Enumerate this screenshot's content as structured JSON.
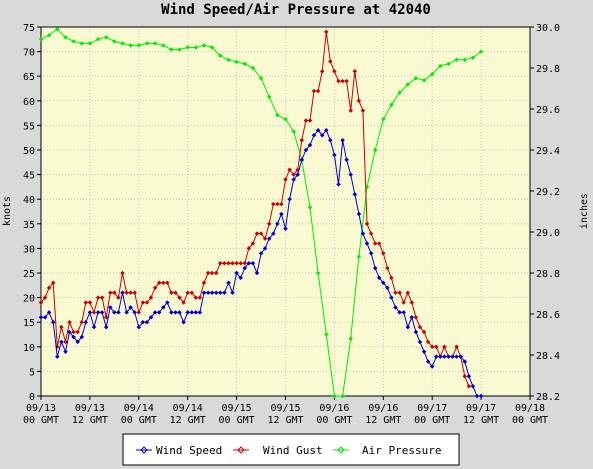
{
  "chart_data": {
    "type": "line",
    "title": "Wind Speed/Air Pressure at 42040",
    "y_left_label": "knots",
    "y_right_label": "inches",
    "y_left_range": [
      0,
      75
    ],
    "y_right_range": [
      28.2,
      30.0
    ],
    "y_left_ticks": [
      "0",
      "5",
      "10",
      "15",
      "20",
      "25",
      "30",
      "35",
      "40",
      "45",
      "50",
      "55",
      "60",
      "65",
      "70",
      "75"
    ],
    "y_right_ticks": [
      "28.2",
      "28.4",
      "28.6",
      "28.8",
      "29.0",
      "29.2",
      "29.4",
      "29.6",
      "29.8",
      "30.0"
    ],
    "x_range_hours": [
      0,
      120
    ],
    "x_ticks": [
      {
        "line1": "09/13",
        "line2": "00 GMT"
      },
      {
        "line1": "09/13",
        "line2": "12 GMT"
      },
      {
        "line1": "09/14",
        "line2": "00 GMT"
      },
      {
        "line1": "09/14",
        "line2": "12 GMT"
      },
      {
        "line1": "09/15",
        "line2": "00 GMT"
      },
      {
        "line1": "09/15",
        "line2": "12 GMT"
      },
      {
        "line1": "09/16",
        "line2": "00 GMT"
      },
      {
        "line1": "09/16",
        "line2": "12 GMT"
      },
      {
        "line1": "09/17",
        "line2": "00 GMT"
      },
      {
        "line1": "09/17",
        "line2": "12 GMT"
      },
      {
        "line1": "09/18",
        "line2": "00 GMT"
      }
    ],
    "grid": true,
    "legend_position": "bottom",
    "series": [
      {
        "name": "Wind Speed",
        "axis": "left",
        "color": "#0000cc",
        "x": [
          0,
          1,
          2,
          3,
          4,
          5,
          6,
          7,
          8,
          9,
          10,
          11,
          12,
          13,
          14,
          15,
          16,
          17,
          18,
          19,
          20,
          21,
          22,
          23,
          24,
          25,
          26,
          27,
          28,
          29,
          30,
          31,
          32,
          33,
          34,
          35,
          36,
          37,
          38,
          39,
          40,
          41,
          42,
          43,
          44,
          45,
          46,
          47,
          48,
          49,
          50,
          51,
          52,
          53,
          54,
          55,
          56,
          57,
          58,
          59,
          60,
          61,
          62,
          63,
          64,
          65,
          66,
          67,
          68,
          69,
          70,
          71,
          72,
          73,
          74,
          75,
          76,
          77,
          78,
          79,
          80,
          81,
          82,
          83,
          84,
          85,
          86,
          87,
          88,
          89,
          90,
          91,
          92,
          93,
          94,
          95,
          96,
          97,
          98,
          99,
          100,
          101,
          102,
          103,
          104,
          105,
          106,
          107,
          108
        ],
        "values": [
          16,
          16,
          17,
          15,
          8,
          11,
          9,
          13,
          12,
          11,
          12,
          15,
          17,
          14,
          17,
          17,
          14,
          18,
          17,
          17,
          21,
          17,
          18,
          17,
          14,
          15,
          15,
          16,
          17,
          17,
          18,
          19,
          17,
          17,
          17,
          15,
          17,
          17,
          17,
          17,
          21,
          21,
          21,
          21,
          21,
          21,
          23,
          21,
          25,
          24,
          26,
          27,
          27,
          25,
          29,
          30,
          32,
          33,
          35,
          37,
          34,
          40,
          44,
          45,
          48,
          50,
          51,
          53,
          54,
          53,
          54,
          52,
          49,
          43,
          52,
          48,
          45,
          41,
          37,
          33,
          31,
          29,
          26,
          24,
          23,
          22,
          20,
          18,
          17,
          17,
          14,
          16,
          13,
          11,
          9,
          7,
          6,
          8,
          8,
          8,
          8,
          8,
          8,
          8,
          7,
          4,
          2,
          0,
          0
        ]
      },
      {
        "name": "Wind Gust",
        "axis": "left",
        "color": "#cc0000",
        "x": [
          0,
          1,
          2,
          3,
          4,
          5,
          6,
          7,
          8,
          9,
          10,
          11,
          12,
          13,
          14,
          15,
          16,
          17,
          18,
          19,
          20,
          21,
          22,
          23,
          24,
          25,
          26,
          27,
          28,
          29,
          30,
          31,
          32,
          33,
          34,
          35,
          36,
          37,
          38,
          39,
          40,
          41,
          42,
          43,
          44,
          45,
          46,
          47,
          48,
          49,
          50,
          51,
          52,
          53,
          54,
          55,
          56,
          57,
          58,
          59,
          60,
          61,
          62,
          63,
          64,
          65,
          66,
          67,
          68,
          69,
          70,
          71,
          72,
          73,
          74,
          75,
          76,
          77,
          78,
          79,
          80,
          81,
          82,
          83,
          84,
          85,
          86,
          87,
          88,
          89,
          90,
          91,
          92,
          93,
          94,
          95,
          96,
          97,
          98,
          99,
          100,
          101,
          102,
          103,
          104,
          105
        ],
        "values": [
          19,
          20,
          22,
          23,
          10,
          14,
          11,
          15,
          13,
          13,
          15,
          19,
          19,
          17,
          20,
          20,
          16,
          21,
          21,
          20,
          25,
          21,
          21,
          21,
          17,
          19,
          19,
          20,
          22,
          23,
          23,
          23,
          21,
          21,
          20,
          19,
          21,
          21,
          20,
          20,
          23,
          25,
          25,
          25,
          27,
          27,
          27,
          27,
          27,
          27,
          27,
          30,
          31,
          33,
          33,
          32,
          35,
          39,
          39,
          39,
          44,
          46,
          45,
          46,
          52,
          56,
          56,
          62,
          62,
          66,
          74,
          68,
          66,
          64,
          64,
          64,
          58,
          66,
          60,
          58,
          35,
          33,
          31,
          31,
          29,
          26,
          24,
          21,
          21,
          19,
          21,
          19,
          16,
          14,
          13,
          11,
          10,
          10,
          8,
          10,
          8,
          8,
          10,
          8,
          4,
          2
        ]
      },
      {
        "name": "Air Pressure",
        "axis": "right",
        "color": "#00ee00",
        "x": [
          0,
          2,
          4,
          6,
          8,
          10,
          12,
          14,
          16,
          18,
          20,
          22,
          24,
          26,
          28,
          30,
          32,
          34,
          36,
          38,
          40,
          42,
          44,
          46,
          48,
          50,
          52,
          54,
          56,
          58,
          60,
          62,
          64,
          66,
          68,
          70,
          72,
          74,
          76,
          78,
          80,
          82,
          84,
          86,
          88,
          90,
          92,
          94,
          96,
          98,
          100,
          102,
          104,
          106,
          108
        ],
        "values": [
          29.94,
          29.96,
          29.99,
          29.95,
          29.93,
          29.92,
          29.92,
          29.94,
          29.95,
          29.93,
          29.92,
          29.91,
          29.91,
          29.92,
          29.92,
          29.91,
          29.89,
          29.89,
          29.9,
          29.9,
          29.91,
          29.9,
          29.86,
          29.84,
          29.83,
          29.82,
          29.8,
          29.75,
          29.66,
          29.57,
          29.55,
          29.49,
          29.35,
          29.12,
          28.8,
          28.5,
          28.2,
          28.2,
          28.48,
          28.88,
          29.22,
          29.4,
          29.55,
          29.62,
          29.68,
          29.72,
          29.75,
          29.74,
          29.77,
          29.81,
          29.82,
          29.84,
          29.84,
          29.85,
          29.88
        ]
      }
    ]
  }
}
